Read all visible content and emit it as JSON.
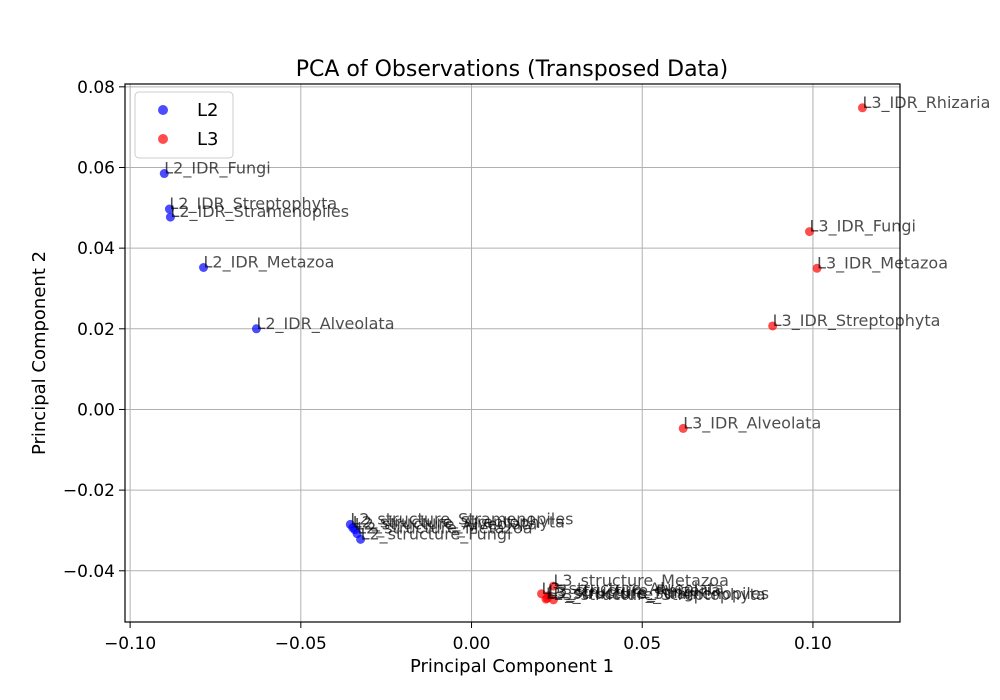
{
  "chart_data": {
    "type": "scatter",
    "title": "PCA of Observations (Transposed Data)",
    "xlabel": "Principal Component 1",
    "ylabel": "Principal Component 2",
    "xlim": [
      -0.1015,
      0.1255
    ],
    "ylim": [
      -0.0527,
      0.0807
    ],
    "xticks": [
      -0.1,
      -0.05,
      0.0,
      0.05,
      0.1
    ],
    "xtick_labels": [
      "−0.10",
      "−0.05",
      "0.00",
      "0.05",
      "0.10"
    ],
    "yticks": [
      -0.04,
      -0.02,
      0.0,
      0.02,
      0.04,
      0.06,
      0.08
    ],
    "ytick_labels": [
      "−0.04",
      "−0.02",
      "0.00",
      "0.02",
      "0.04",
      "0.06",
      "0.08"
    ],
    "grid": true,
    "legend_position": "top-left",
    "series": [
      {
        "name": "L2",
        "color": "#0000ff",
        "points": [
          {
            "x": -0.09,
            "y": 0.0585,
            "label": "L2_IDR_Fungi"
          },
          {
            "x": -0.0885,
            "y": 0.0497,
            "label": "L2_IDR_Streptophyta"
          },
          {
            "x": -0.0882,
            "y": 0.0477,
            "label": "L2_IDR_Stramenopiles"
          },
          {
            "x": -0.0785,
            "y": 0.0352,
            "label": "L2_IDR_Metazoa"
          },
          {
            "x": -0.063,
            "y": 0.02,
            "label": "L2_IDR_Alveolata"
          },
          {
            "x": -0.0355,
            "y": -0.0285,
            "label": "L2_structure_Stramenopiles"
          },
          {
            "x": -0.0348,
            "y": -0.0293,
            "label": "L2_structure_Streptophyta"
          },
          {
            "x": -0.0342,
            "y": -0.0298,
            "label": "L2_structure_Alveolata"
          },
          {
            "x": -0.0335,
            "y": -0.0308,
            "label": "L2_structure_Metazoa"
          },
          {
            "x": -0.0325,
            "y": -0.0322,
            "label": "L2_structure_Fungi"
          }
        ]
      },
      {
        "name": "L3",
        "color": "#ff0000",
        "points": [
          {
            "x": 0.1145,
            "y": 0.0748,
            "label": "L3_IDR_Rhizaria"
          },
          {
            "x": 0.099,
            "y": 0.0441,
            "label": "L3_IDR_Fungi"
          },
          {
            "x": 0.1012,
            "y": 0.035,
            "label": "L3_IDR_Metazoa"
          },
          {
            "x": 0.0882,
            "y": 0.0207,
            "label": "L3_IDR_Streptophyta"
          },
          {
            "x": 0.062,
            "y": -0.0047,
            "label": "L3_IDR_Alveolata"
          },
          {
            "x": 0.024,
            "y": -0.0438,
            "label": "L3_structure_Metazoa"
          },
          {
            "x": 0.0205,
            "y": -0.0457,
            "label": "L3_structure_Alveolata"
          },
          {
            "x": 0.0225,
            "y": -0.0462,
            "label": "L3_structure_Rhizaria"
          },
          {
            "x": 0.0222,
            "y": -0.0468,
            "label": "L3_structure_Fungi"
          },
          {
            "x": 0.0218,
            "y": -0.047,
            "label": "L3_structure_Stramenopiles"
          },
          {
            "x": 0.024,
            "y": -0.0472,
            "label": "L3_structure_Streptophyta"
          }
        ]
      }
    ]
  }
}
